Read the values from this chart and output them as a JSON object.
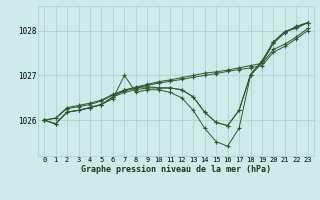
{
  "xlabel": "Graphe pression niveau de la mer (hPa)",
  "background_color": "#ceeaea",
  "grid_color": "#aacece",
  "line_color": "#2d5a2d",
  "xlim": [
    -0.5,
    23.5
  ],
  "ylim": [
    1025.2,
    1028.55
  ],
  "yticks": [
    1026,
    1027,
    1028
  ],
  "xticks": [
    0,
    1,
    2,
    3,
    4,
    5,
    6,
    7,
    8,
    9,
    10,
    11,
    12,
    13,
    14,
    15,
    16,
    17,
    18,
    19,
    20,
    21,
    22,
    23
  ],
  "series": [
    [
      1026.0,
      1025.92,
      1026.18,
      1026.22,
      1026.28,
      1026.35,
      1026.48,
      1027.0,
      1026.62,
      1026.68,
      1026.68,
      1026.62,
      1026.5,
      1026.22,
      1025.82,
      1025.52,
      1025.42,
      1025.82,
      1027.0,
      1027.28,
      1027.72,
      1027.95,
      1028.1,
      1028.18
    ],
    [
      1026.0,
      1025.92,
      1026.18,
      1026.22,
      1026.28,
      1026.35,
      1026.52,
      1026.68,
      1026.72,
      1026.75,
      1026.72,
      1026.72,
      1026.68,
      1026.52,
      1026.18,
      1025.95,
      1025.88,
      1026.22,
      1027.02,
      1027.32,
      1027.75,
      1027.98,
      1028.08,
      1028.18
    ],
    [
      1026.0,
      1025.92,
      1026.18,
      1026.22,
      1026.28,
      1026.35,
      1026.52,
      1026.62,
      1026.68,
      1026.72,
      1026.72,
      1026.72,
      1026.68,
      1026.52,
      1026.18,
      1025.95,
      1025.88,
      1026.22,
      1027.02,
      1027.32,
      1027.75,
      1027.98,
      1028.05,
      1028.18
    ],
    [
      1026.0,
      1026.04,
      1026.26,
      1026.3,
      1026.35,
      1026.43,
      1026.56,
      1026.65,
      1026.72,
      1026.78,
      1026.83,
      1026.87,
      1026.91,
      1026.96,
      1027.0,
      1027.04,
      1027.09,
      1027.13,
      1027.17,
      1027.22,
      1027.52,
      1027.65,
      1027.82,
      1028.0
    ],
    [
      1026.0,
      1026.05,
      1026.28,
      1026.33,
      1026.38,
      1026.45,
      1026.58,
      1026.67,
      1026.74,
      1026.8,
      1026.86,
      1026.9,
      1026.95,
      1027.0,
      1027.05,
      1027.08,
      1027.12,
      1027.17,
      1027.22,
      1027.27,
      1027.58,
      1027.7,
      1027.86,
      1028.05
    ]
  ]
}
